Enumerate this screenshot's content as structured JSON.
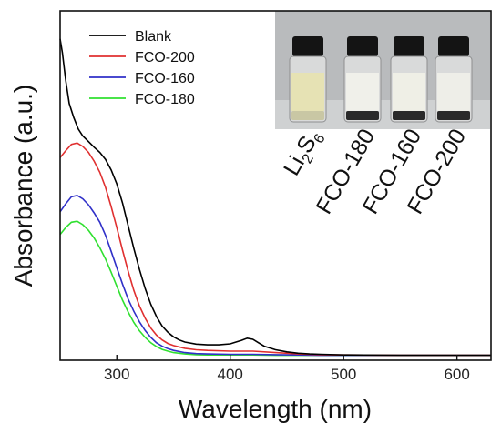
{
  "chart_data": {
    "type": "line",
    "xlabel": "Wavelength (nm)",
    "ylabel": "Absorbance (a.u.)",
    "xlim": [
      250,
      630
    ],
    "x_ticks": [
      300,
      400,
      500,
      600
    ],
    "y_ticks_shown": false,
    "grid": false,
    "legend_position": "top-left",
    "series": [
      {
        "name": "Blank",
        "color": "#000000",
        "x": [
          250,
          252,
          255,
          258,
          262,
          266,
          270,
          275,
          280,
          285,
          290,
          295,
          300,
          305,
          310,
          315,
          320,
          325,
          330,
          335,
          340,
          345,
          350,
          355,
          360,
          370,
          380,
          390,
          400,
          410,
          415,
          420,
          425,
          430,
          440,
          450,
          460,
          470,
          480,
          500,
          550,
          600,
          630
        ],
        "y": [
          9.2,
          8.8,
          8.0,
          7.35,
          6.95,
          6.62,
          6.42,
          6.26,
          6.1,
          5.95,
          5.75,
          5.45,
          5.05,
          4.5,
          3.85,
          3.2,
          2.6,
          2.05,
          1.6,
          1.25,
          0.98,
          0.8,
          0.67,
          0.58,
          0.52,
          0.46,
          0.44,
          0.44,
          0.47,
          0.57,
          0.63,
          0.6,
          0.5,
          0.4,
          0.3,
          0.24,
          0.2,
          0.18,
          0.17,
          0.15,
          0.14,
          0.14,
          0.14
        ]
      },
      {
        "name": "FCO-200",
        "color": "#e03030",
        "x": [
          250,
          255,
          260,
          265,
          270,
          275,
          280,
          285,
          290,
          295,
          300,
          305,
          310,
          315,
          320,
          325,
          330,
          335,
          340,
          345,
          350,
          360,
          370,
          380,
          400,
          420,
          440,
          460,
          480,
          500,
          550,
          600,
          630
        ],
        "y": [
          5.8,
          6.0,
          6.18,
          6.22,
          6.12,
          5.95,
          5.7,
          5.38,
          4.95,
          4.4,
          3.8,
          3.15,
          2.55,
          2.0,
          1.55,
          1.2,
          0.92,
          0.72,
          0.58,
          0.48,
          0.42,
          0.34,
          0.3,
          0.28,
          0.26,
          0.26,
          0.22,
          0.18,
          0.16,
          0.15,
          0.14,
          0.14,
          0.14
        ]
      },
      {
        "name": "FCO-160",
        "color": "#3030c8",
        "x": [
          250,
          255,
          260,
          265,
          270,
          275,
          280,
          285,
          290,
          295,
          300,
          305,
          310,
          315,
          320,
          325,
          330,
          335,
          340,
          345,
          350,
          360,
          370,
          380,
          400,
          420,
          440,
          460,
          480,
          500,
          550,
          600,
          630
        ],
        "y": [
          4.25,
          4.48,
          4.68,
          4.72,
          4.62,
          4.45,
          4.22,
          3.95,
          3.58,
          3.12,
          2.65,
          2.18,
          1.75,
          1.4,
          1.1,
          0.85,
          0.65,
          0.5,
          0.4,
          0.33,
          0.28,
          0.22,
          0.19,
          0.18,
          0.17,
          0.17,
          0.16,
          0.15,
          0.14,
          0.14,
          0.14,
          0.14,
          0.14
        ]
      },
      {
        "name": "FCO-180",
        "color": "#30e030",
        "x": [
          250,
          255,
          260,
          265,
          270,
          275,
          280,
          285,
          290,
          295,
          300,
          305,
          310,
          315,
          320,
          325,
          330,
          335,
          340,
          345,
          350,
          360,
          370,
          380,
          400,
          420,
          440,
          460,
          480,
          500,
          550,
          600,
          630
        ],
        "y": [
          3.6,
          3.8,
          3.95,
          3.98,
          3.88,
          3.72,
          3.5,
          3.22,
          2.9,
          2.52,
          2.12,
          1.72,
          1.38,
          1.08,
          0.84,
          0.65,
          0.5,
          0.39,
          0.31,
          0.26,
          0.22,
          0.18,
          0.16,
          0.15,
          0.15,
          0.15,
          0.14,
          0.14,
          0.14,
          0.14,
          0.14,
          0.14,
          0.14
        ]
      }
    ],
    "inset": {
      "vial_labels": [
        "Li2S6",
        "FCO-180",
        "FCO-160",
        "FCO-200"
      ],
      "vial_liquid_colors": [
        "#e6e2b4",
        "#f0f0ea",
        "#efefe6",
        "#eeeee8"
      ]
    }
  }
}
